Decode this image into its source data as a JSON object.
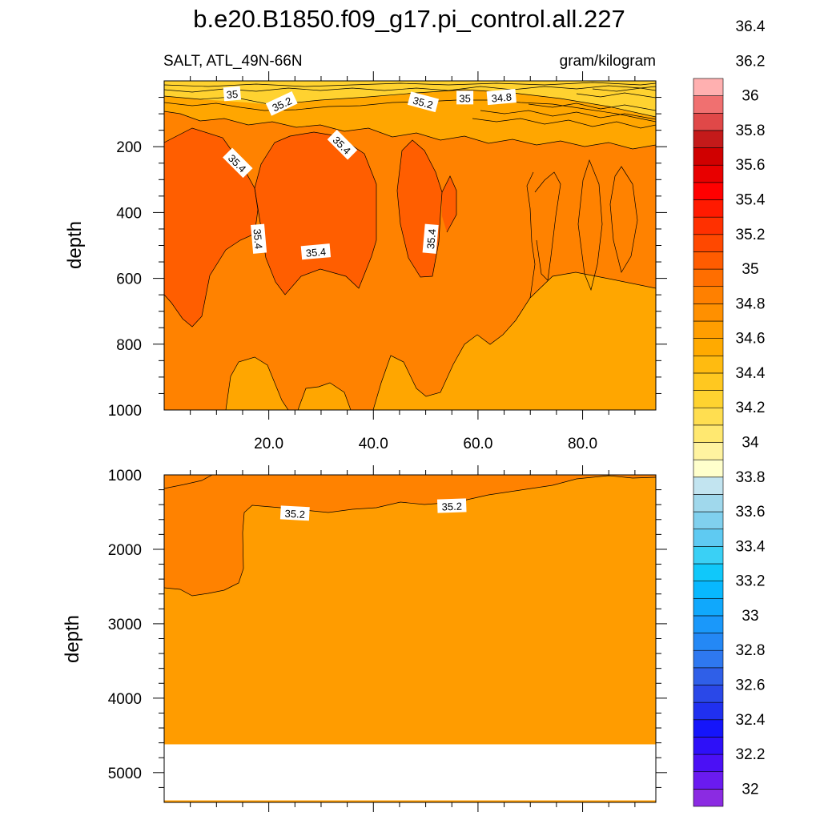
{
  "chart_data": {
    "type": "contour",
    "title": "b.e20.B1850.f09_g17.pi_control.all.227",
    "subtitle_left": "SALT, ATL_49N-66N",
    "subtitle_right": "gram/kilogram",
    "panels": [
      {
        "name": "upper",
        "ylabel": "depth",
        "ylim": [
          0,
          1000
        ],
        "yticks": [
          200,
          400,
          600,
          800,
          1000
        ],
        "xlim": [
          0,
          94
        ],
        "xticks": [
          20,
          40,
          60,
          80
        ],
        "xtick_labels": [
          "20.0",
          "40.0",
          "60.0",
          "80.0"
        ],
        "contour_labels": [
          {
            "text": "35",
            "x": 13,
            "y": 40
          },
          {
            "text": "35.2",
            "x": 22.5,
            "y": 70
          },
          {
            "text": "35.2",
            "x": 49.5,
            "y": 65
          },
          {
            "text": "35",
            "x": 57.5,
            "y": 52
          },
          {
            "text": "34.8",
            "x": 64.5,
            "y": 50
          },
          {
            "text": "35.4",
            "x": 14,
            "y": 250
          },
          {
            "text": "35.4",
            "x": 34,
            "y": 195
          },
          {
            "text": "35.4",
            "x": 18,
            "y": 480
          },
          {
            "text": "35.4",
            "x": 29,
            "y": 520
          },
          {
            "text": "35.4",
            "x": 51,
            "y": 480
          }
        ]
      },
      {
        "name": "lower",
        "ylabel": "depth",
        "ylim": [
          1000,
          5400
        ],
        "yticks": [
          1000,
          2000,
          3000,
          4000,
          5000
        ],
        "bottom_depth": 4620,
        "contour_labels": [
          {
            "text": "35.2",
            "x": 25,
            "y": 1520
          },
          {
            "text": "35.2",
            "x": 55,
            "y": 1420
          }
        ]
      }
    ],
    "colorbar": {
      "labels": [
        "32",
        "32.2",
        "32.4",
        "32.6",
        "32.8",
        "33",
        "33.2",
        "33.4",
        "33.6",
        "33.8",
        "34",
        "34.2",
        "34.4",
        "34.6",
        "34.8",
        "35",
        "35.2",
        "35.4",
        "35.6",
        "35.8",
        "36",
        "36.2",
        "36.4"
      ],
      "colors": [
        "#8B2BE2",
        "#6A1BF0",
        "#4B10F5",
        "#2E10F8",
        "#1515FA",
        "#2030F0",
        "#2A48E8",
        "#2F5FE8",
        "#2E78F0",
        "#2488F5",
        "#1A98FA",
        "#10A8FC",
        "#08B8FE",
        "#10C8FA",
        "#3AD0F5",
        "#5FCAF2",
        "#80D0EE",
        "#A0D8EC",
        "#C2E4F0",
        "#FFFFCC",
        "#FFF3A0",
        "#FFE870",
        "#FFDE50",
        "#FFD330",
        "#FFC820",
        "#FFBB10",
        "#FFAA00",
        "#FF9E00",
        "#FF9000",
        "#FF8000",
        "#FF6E00",
        "#FF5C00",
        "#FF4800",
        "#FF3000",
        "#FF1A00",
        "#FF0000",
        "#E80000",
        "#D00000",
        "#C41A1A",
        "#E04848",
        "#F07070",
        "#FFB0B0"
      ]
    },
    "fill_colors": {
      "surface": "#FFD230",
      "upper_water": "#FFA600",
      "s352": "#FF8200",
      "s354": "#FF5E00",
      "deep": "#FF9C00"
    }
  }
}
